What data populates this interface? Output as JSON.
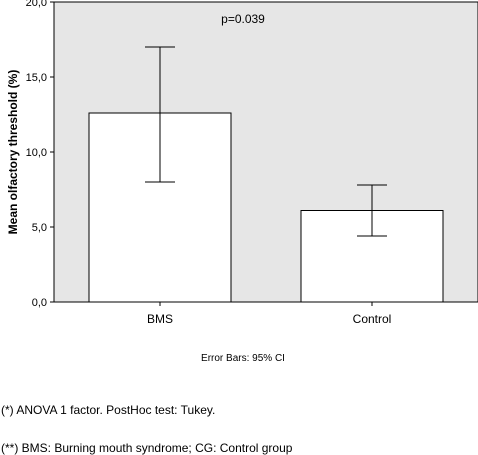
{
  "chart_data": {
    "type": "bar",
    "categories": [
      "BMS",
      "Control"
    ],
    "values": [
      12.6,
      6.1
    ],
    "error_bars": [
      {
        "low": 8.0,
        "high": 17.0
      },
      {
        "low": 4.4,
        "high": 7.8
      }
    ],
    "ylabel": "Mean olfactory threshold (%)",
    "xlabel": "",
    "ylim": [
      0,
      20
    ],
    "yticks": [
      "0,0",
      "5,0",
      "10,0",
      "15,0",
      "20,0"
    ],
    "ytick_values": [
      0,
      5,
      10,
      15,
      20
    ],
    "annotation": "p=0.039",
    "error_bar_caption": "Error Bars: 95% CI",
    "colors": {
      "plot_background": "#e6e6e6",
      "bar_fill": "#ffffff",
      "bar_stroke": "#000000"
    }
  },
  "footnotes": [
    "(*) ANOVA 1 factor. PostHoc test: Tukey.",
    "(**) BMS: Burning mouth syndrome; CG: Control group"
  ]
}
